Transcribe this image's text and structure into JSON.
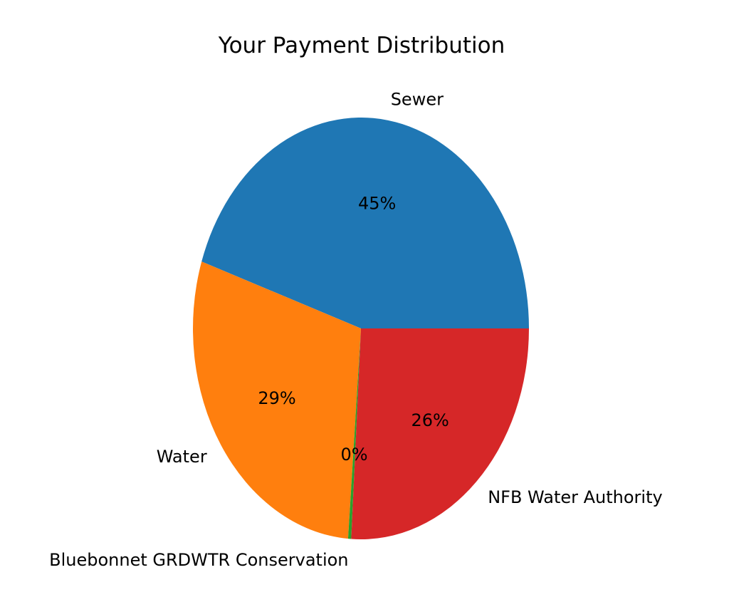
{
  "chart_data": {
    "type": "pie",
    "title": "Your Payment Distribution",
    "slices": [
      {
        "label": "Sewer",
        "value": 45,
        "pct_label": "45%",
        "color": "#1f77b4"
      },
      {
        "label": "Water",
        "value": 29,
        "pct_label": "29%",
        "color": "#ff7f0e"
      },
      {
        "label": "Bluebonnet GRDWTR Conservation",
        "value": 0.3,
        "pct_label": "0%",
        "color": "#2ca02c"
      },
      {
        "label": "NFB Water Authority",
        "value": 26,
        "pct_label": "26%",
        "color": "#d62728"
      }
    ],
    "start_angle_deg": 0,
    "direction": "counterclockwise",
    "legend": "none"
  }
}
